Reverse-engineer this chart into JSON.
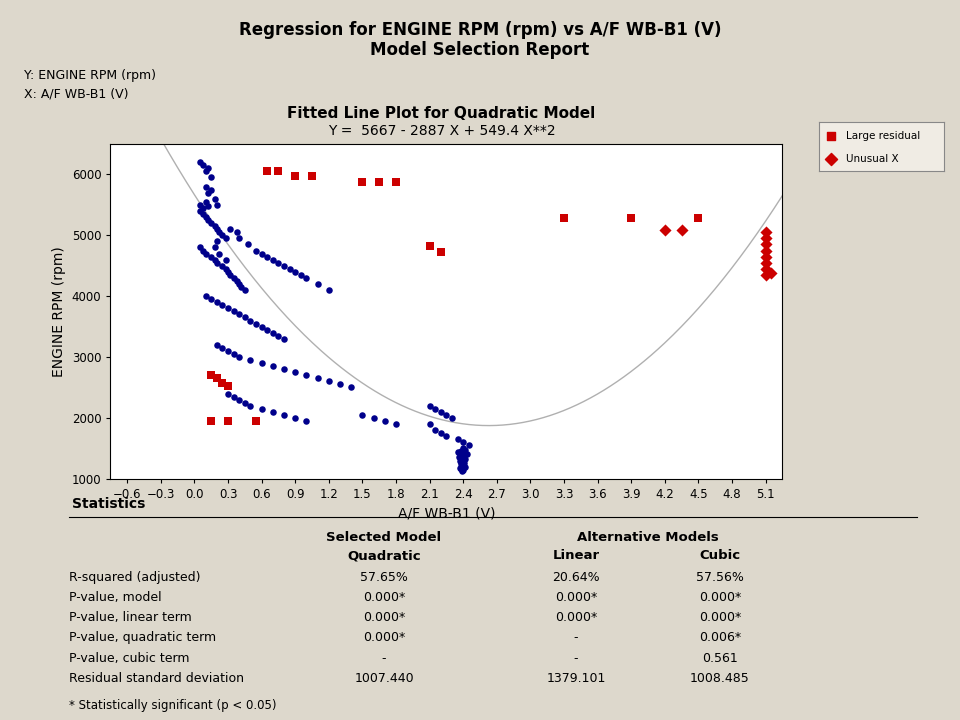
{
  "title_line1": "Regression for ENGINE RPM (rpm) vs A/F WB-B1 (V)",
  "title_line2": "Model Selection Report",
  "y_label_info": "Y: ENGINE RPM (rpm)",
  "x_label_info": "X: A/F WB-B1 (V)",
  "plot_title": "Fitted Line Plot for Quadratic Model",
  "equation": "Y =  5667 - 2887 X + 549.4 X**2",
  "xlabel": "A/F WB-B1 (V)",
  "ylabel": "ENGINE RPM (rpm)",
  "bg_color": "#ddd8cc",
  "plot_bg_color": "#ffffff",
  "normal_color": "#00008B",
  "large_residual_color": "#CC0000",
  "unusual_x_color": "#CC0000",
  "curve_color": "#b0b0b0",
  "ylim": [
    1000,
    6500
  ],
  "xlim": [
    -0.75,
    5.25
  ],
  "xticks": [
    -0.6,
    -0.3,
    0.0,
    0.3,
    0.6,
    0.9,
    1.2,
    1.5,
    1.8,
    2.1,
    2.4,
    2.7,
    3.0,
    3.3,
    3.6,
    3.9,
    4.2,
    4.5,
    4.8,
    5.1
  ],
  "yticks": [
    1000,
    2000,
    3000,
    4000,
    5000,
    6000
  ],
  "quad_a": 549.4,
  "quad_b": -2887,
  "quad_c": 5667,
  "normal_points": [
    [
      0.05,
      6200
    ],
    [
      0.08,
      6150
    ],
    [
      0.1,
      6050
    ],
    [
      0.12,
      6100
    ],
    [
      0.15,
      5950
    ],
    [
      0.1,
      5800
    ],
    [
      0.12,
      5700
    ],
    [
      0.15,
      5750
    ],
    [
      0.18,
      5600
    ],
    [
      0.2,
      5500
    ],
    [
      0.05,
      5400
    ],
    [
      0.08,
      5350
    ],
    [
      0.1,
      5300
    ],
    [
      0.12,
      5250
    ],
    [
      0.15,
      5200
    ],
    [
      0.18,
      5150
    ],
    [
      0.2,
      5100
    ],
    [
      0.22,
      5050
    ],
    [
      0.25,
      5000
    ],
    [
      0.28,
      4950
    ],
    [
      0.05,
      4800
    ],
    [
      0.08,
      4750
    ],
    [
      0.1,
      4700
    ],
    [
      0.15,
      4650
    ],
    [
      0.18,
      4600
    ],
    [
      0.2,
      4550
    ],
    [
      0.25,
      4500
    ],
    [
      0.28,
      4450
    ],
    [
      0.3,
      4400
    ],
    [
      0.32,
      4350
    ],
    [
      0.35,
      4300
    ],
    [
      0.38,
      4250
    ],
    [
      0.4,
      4200
    ],
    [
      0.42,
      4150
    ],
    [
      0.45,
      4100
    ],
    [
      0.1,
      4000
    ],
    [
      0.15,
      3950
    ],
    [
      0.2,
      3900
    ],
    [
      0.25,
      3850
    ],
    [
      0.3,
      3800
    ],
    [
      0.35,
      3750
    ],
    [
      0.4,
      3700
    ],
    [
      0.45,
      3650
    ],
    [
      0.5,
      3600
    ],
    [
      0.55,
      3550
    ],
    [
      0.6,
      3500
    ],
    [
      0.65,
      3450
    ],
    [
      0.7,
      3400
    ],
    [
      0.75,
      3350
    ],
    [
      0.8,
      3300
    ],
    [
      0.2,
      3200
    ],
    [
      0.25,
      3150
    ],
    [
      0.3,
      3100
    ],
    [
      0.35,
      3050
    ],
    [
      0.4,
      3000
    ],
    [
      0.5,
      2950
    ],
    [
      0.6,
      2900
    ],
    [
      0.7,
      2850
    ],
    [
      0.8,
      2800
    ],
    [
      0.9,
      2750
    ],
    [
      1.0,
      2700
    ],
    [
      1.1,
      2650
    ],
    [
      1.2,
      2600
    ],
    [
      1.3,
      2550
    ],
    [
      1.4,
      2500
    ],
    [
      0.3,
      2400
    ],
    [
      0.35,
      2350
    ],
    [
      0.4,
      2300
    ],
    [
      0.45,
      2250
    ],
    [
      0.5,
      2200
    ],
    [
      0.6,
      2150
    ],
    [
      0.7,
      2100
    ],
    [
      0.8,
      2050
    ],
    [
      0.9,
      2000
    ],
    [
      1.0,
      1950
    ],
    [
      1.5,
      2050
    ],
    [
      1.6,
      2000
    ],
    [
      1.7,
      1950
    ],
    [
      1.8,
      1900
    ],
    [
      2.1,
      2200
    ],
    [
      2.15,
      2150
    ],
    [
      2.2,
      2100
    ],
    [
      2.25,
      2050
    ],
    [
      2.3,
      2000
    ],
    [
      2.1,
      1900
    ],
    [
      2.15,
      1800
    ],
    [
      2.2,
      1750
    ],
    [
      2.25,
      1700
    ],
    [
      2.35,
      1650
    ],
    [
      2.4,
      1600
    ],
    [
      2.45,
      1550
    ],
    [
      2.4,
      1500
    ],
    [
      2.42,
      1480
    ],
    [
      2.38,
      1460
    ],
    [
      2.35,
      1440
    ],
    [
      2.4,
      1420
    ],
    [
      2.43,
      1400
    ],
    [
      2.38,
      1380
    ],
    [
      2.36,
      1360
    ],
    [
      2.4,
      1340
    ],
    [
      2.42,
      1320
    ],
    [
      2.37,
      1300
    ],
    [
      2.39,
      1280
    ],
    [
      2.41,
      1260
    ],
    [
      2.38,
      1240
    ],
    [
      2.4,
      1220
    ],
    [
      2.42,
      1200
    ],
    [
      2.37,
      1180
    ],
    [
      2.38,
      1160
    ],
    [
      2.4,
      1140
    ],
    [
      2.39,
      1120
    ],
    [
      0.05,
      5500
    ],
    [
      0.08,
      5450
    ],
    [
      0.1,
      5550
    ],
    [
      0.12,
      5480
    ],
    [
      0.18,
      4800
    ],
    [
      0.2,
      4900
    ],
    [
      0.22,
      4700
    ],
    [
      0.28,
      4600
    ],
    [
      0.32,
      5100
    ],
    [
      0.38,
      5050
    ],
    [
      0.4,
      4950
    ],
    [
      0.48,
      4850
    ],
    [
      0.55,
      4750
    ],
    [
      0.6,
      4700
    ],
    [
      0.65,
      4650
    ],
    [
      0.7,
      4600
    ],
    [
      0.75,
      4550
    ],
    [
      0.8,
      4500
    ],
    [
      0.85,
      4450
    ],
    [
      0.9,
      4400
    ],
    [
      0.95,
      4350
    ],
    [
      1.0,
      4300
    ],
    [
      1.1,
      4200
    ],
    [
      1.2,
      4100
    ]
  ],
  "large_residual_points": [
    [
      0.65,
      6050
    ],
    [
      0.75,
      6050
    ],
    [
      0.9,
      5980
    ],
    [
      1.05,
      5980
    ],
    [
      1.5,
      5880
    ],
    [
      1.65,
      5880
    ],
    [
      1.8,
      5880
    ],
    [
      2.1,
      4820
    ],
    [
      2.2,
      4730
    ],
    [
      0.15,
      2700
    ],
    [
      0.2,
      2650
    ],
    [
      0.25,
      2580
    ],
    [
      0.3,
      2530
    ],
    [
      0.15,
      1950
    ],
    [
      0.3,
      1950
    ],
    [
      0.55,
      1950
    ],
    [
      3.3,
      5280
    ],
    [
      3.9,
      5280
    ],
    [
      4.5,
      5280
    ]
  ],
  "unusual_x_points": [
    [
      4.2,
      5080
    ],
    [
      4.35,
      5080
    ],
    [
      5.1,
      5050
    ],
    [
      5.1,
      4950
    ],
    [
      5.1,
      4850
    ],
    [
      5.1,
      4750
    ],
    [
      5.1,
      4650
    ],
    [
      5.1,
      4550
    ],
    [
      5.1,
      4450
    ],
    [
      5.1,
      4350
    ],
    [
      5.15,
      4380
    ]
  ],
  "statistics": {
    "header1": "Selected Model",
    "header2": "Alternative Models",
    "col1": "Quadratic",
    "col2": "Linear",
    "col3": "Cubic",
    "rows": [
      [
        "R-squared (adjusted)",
        "57.65%",
        "20.64%",
        "57.56%"
      ],
      [
        "P-value, model",
        "0.000*",
        "0.000*",
        "0.000*"
      ],
      [
        "P-value, linear term",
        "0.000*",
        "0.000*",
        "0.000*"
      ],
      [
        "P-value, quadratic term",
        "0.000*",
        "-",
        "0.006*"
      ],
      [
        "P-value, cubic term",
        "-",
        "-",
        "0.561"
      ],
      [
        "Residual standard deviation",
        "1007.440",
        "1379.101",
        "1008.485"
      ]
    ],
    "footnote": "* Statistically significant (p < 0.05)"
  }
}
